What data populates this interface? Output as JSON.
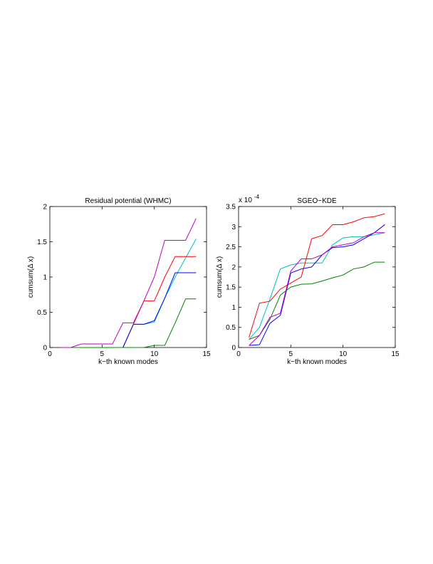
{
  "chart_data": [
    {
      "type": "line",
      "title": "Residual potential (WHMC)",
      "x_label": "k−th known modes",
      "y_label": "cumsum(Δ x)",
      "x": [
        1,
        2,
        3,
        4,
        5,
        6,
        7,
        8,
        9,
        10,
        11,
        12,
        13,
        14
      ],
      "xlim": [
        0,
        15
      ],
      "xticks": [
        0,
        5,
        10,
        15
      ],
      "ylim": [
        0,
        2
      ],
      "yticks": [
        0,
        0.5,
        1,
        1.5,
        2
      ],
      "series": [
        {
          "color": "#00bfbf",
          "values": [
            0,
            0,
            0,
            0,
            0,
            0,
            0,
            0.33,
            0.33,
            0.36,
            0.7,
            1.0,
            1.27,
            1.54
          ]
        },
        {
          "color": "#ff0000",
          "values": [
            0,
            0,
            0,
            0,
            0,
            0,
            0,
            0.33,
            0.66,
            0.66,
            1.0,
            1.29,
            1.29,
            1.29
          ]
        },
        {
          "color": "#0000ff",
          "values": [
            0,
            0,
            0,
            0,
            0,
            0,
            0,
            0.33,
            0.33,
            0.38,
            0.7,
            1.06,
            1.06,
            1.06
          ]
        },
        {
          "color": "#008000",
          "values": [
            0,
            0,
            0,
            0,
            0,
            0,
            0,
            0,
            0,
            0.03,
            0.03,
            0.35,
            0.69,
            0.69
          ]
        },
        {
          "color": "#bf00bf",
          "values": [
            0,
            0,
            0.05,
            0.05,
            0.05,
            0.05,
            0.35,
            0.35,
            0.66,
            1.0,
            1.52,
            1.52,
            1.52,
            1.83
          ]
        }
      ]
    },
    {
      "type": "line",
      "title": "SGEO−KDE",
      "x_label": "k−th known modes",
      "y_label": "cumsum(Δ x)",
      "y_exponent": {
        "base": "x 10",
        "power": "-4"
      },
      "x": [
        1,
        2,
        3,
        4,
        5,
        6,
        7,
        8,
        9,
        10,
        11,
        12,
        13,
        14
      ],
      "xlim": [
        0,
        15
      ],
      "xticks": [
        0,
        5,
        10,
        15
      ],
      "ylim": [
        0,
        3.5
      ],
      "yticks": [
        0,
        0.5,
        1,
        1.5,
        2,
        2.5,
        3,
        3.5
      ],
      "series": [
        {
          "color": "#00bfbf",
          "values": [
            0.2,
            0.5,
            1.2,
            1.95,
            2.05,
            2.1,
            2.1,
            2.1,
            2.55,
            2.72,
            2.75,
            2.75,
            2.8,
            2.85
          ]
        },
        {
          "color": "#ff0000",
          "values": [
            0.25,
            1.1,
            1.15,
            1.45,
            1.6,
            1.75,
            2.7,
            2.78,
            3.05,
            3.05,
            3.12,
            3.22,
            3.25,
            3.32
          ]
        },
        {
          "color": "#0000ff",
          "values": [
            0.05,
            0.07,
            0.6,
            0.8,
            1.85,
            1.95,
            2.0,
            2.3,
            2.48,
            2.5,
            2.55,
            2.7,
            2.85,
            3.05
          ]
        },
        {
          "color": "#008000",
          "values": [
            0.2,
            0.3,
            0.7,
            1.3,
            1.5,
            1.57,
            1.58,
            1.65,
            1.73,
            1.8,
            1.95,
            2.0,
            2.12,
            2.12
          ]
        },
        {
          "color": "#bf00bf",
          "values": [
            0.05,
            0.3,
            0.75,
            0.85,
            1.9,
            2.2,
            2.2,
            2.3,
            2.5,
            2.55,
            2.6,
            2.75,
            2.85,
            2.85
          ]
        }
      ]
    }
  ]
}
